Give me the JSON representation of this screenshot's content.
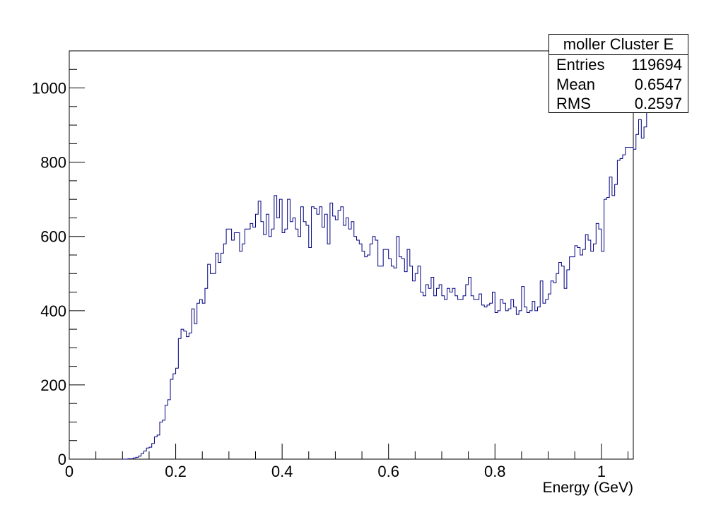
{
  "chart_data": {
    "type": "bar",
    "histogram_style": "step",
    "xlabel": "Energy (GeV)",
    "ylabel": "",
    "xlim": [
      0,
      1.06
    ],
    "ylim": [
      0,
      1100
    ],
    "x_ticks": [
      "0",
      "0.2",
      "0.4",
      "0.6",
      "0.8",
      "1"
    ],
    "y_ticks": [
      "0",
      "200",
      "400",
      "600",
      "800",
      "1000"
    ],
    "bin_width": 0.005,
    "bin_start": 0.1,
    "line_color": "#000080",
    "values": [
      0,
      0,
      1,
      1,
      3,
      5,
      8,
      15,
      22,
      30,
      32,
      42,
      60,
      65,
      100,
      105,
      145,
      160,
      215,
      230,
      245,
      325,
      350,
      345,
      330,
      340,
      405,
      365,
      420,
      430,
      420,
      460,
      525,
      500,
      500,
      555,
      530,
      555,
      580,
      620,
      620,
      590,
      610,
      610,
      560,
      580,
      620,
      620,
      635,
      625,
      660,
      695,
      640,
      605,
      660,
      600,
      620,
      710,
      650,
      700,
      610,
      620,
      700,
      640,
      650,
      620,
      600,
      680,
      640,
      630,
      570,
      680,
      675,
      660,
      680,
      625,
      660,
      580,
      690,
      655,
      645,
      670,
      680,
      630,
      650,
      620,
      640,
      600,
      590,
      580,
      560,
      545,
      550,
      580,
      600,
      590,
      520,
      520,
      565,
      565,
      540,
      520,
      515,
      600,
      545,
      540,
      505,
      565,
      520,
      480,
      500,
      520,
      450,
      440,
      470,
      460,
      490,
      440,
      460,
      470,
      440,
      430,
      460,
      450,
      460,
      440,
      430,
      430,
      440,
      470,
      490,
      440,
      430,
      430,
      445,
      415,
      410,
      415,
      420,
      450,
      395,
      400,
      430,
      420,
      400,
      405,
      430,
      410,
      390,
      400,
      465,
      410,
      395,
      400,
      425,
      400,
      410,
      480,
      420,
      430,
      445,
      480,
      475,
      500,
      530,
      520,
      460,
      510,
      545,
      545,
      575,
      570,
      550,
      565,
      605,
      590,
      560,
      580,
      635,
      620,
      560,
      700,
      705,
      760,
      710,
      740,
      805,
      810,
      820,
      840,
      840,
      840,
      835,
      875,
      915,
      865,
      895,
      935,
      985
    ]
  },
  "stats": {
    "title": "moller Cluster E",
    "rows": [
      {
        "key": "Entries",
        "value": "119694"
      },
      {
        "key": "Mean",
        "value": "0.6547"
      },
      {
        "key": "RMS",
        "value": "0.2597"
      }
    ]
  }
}
